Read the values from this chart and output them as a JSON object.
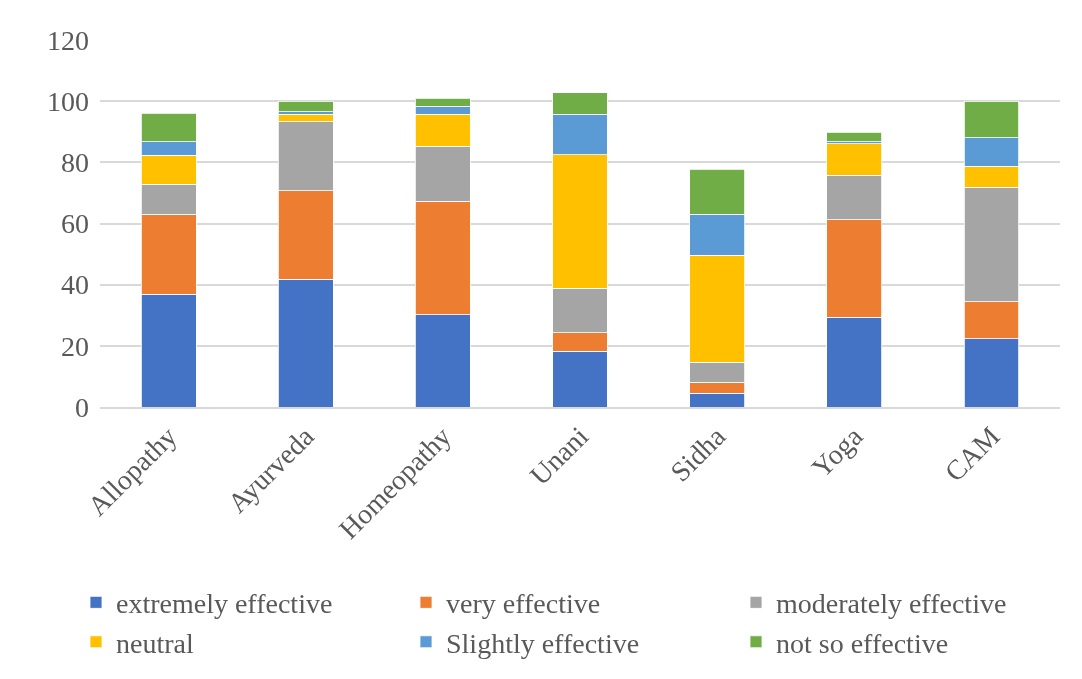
{
  "chart_data": {
    "type": "bar",
    "stacked": true,
    "categories": [
      "Allopathy",
      "Ayurveda",
      "Homeopathy",
      "Unani",
      "Sidha",
      "Yoga",
      "CAM"
    ],
    "series": [
      {
        "name": "extremely effective",
        "color": "#4472c4",
        "values": [
          36.8,
          41.8,
          30.2,
          18.3,
          4.5,
          29.3,
          22.3
        ]
      },
      {
        "name": "very effective",
        "color": "#ed7d31",
        "values": [
          26.2,
          28.9,
          37.1,
          5.9,
          3.6,
          31.9,
          12.1
        ]
      },
      {
        "name": "moderately effective",
        "color": "#a5a5a5",
        "values": [
          9.9,
          22.5,
          17.9,
          14.7,
          6.5,
          14.6,
          37.5
        ]
      },
      {
        "name": "neutral",
        "color": "#ffc000",
        "values": [
          9.4,
          2.5,
          10.6,
          43.5,
          35.0,
          10.3,
          6.8
        ]
      },
      {
        "name": "Slightly effective",
        "color": "#5b9bd5",
        "values": [
          4.5,
          0.8,
          2.6,
          13.3,
          13.4,
          0.6,
          9.4
        ]
      },
      {
        "name": "not so effective",
        "color": "#70ad47",
        "values": [
          9.3,
          3.4,
          2.5,
          7.1,
          14.7,
          3.1,
          11.9
        ]
      }
    ],
    "ylim": [
      0,
      120
    ],
    "yticks": [
      0,
      20,
      40,
      60,
      80,
      100,
      120
    ],
    "grid": "y",
    "legend": "bottom"
  }
}
